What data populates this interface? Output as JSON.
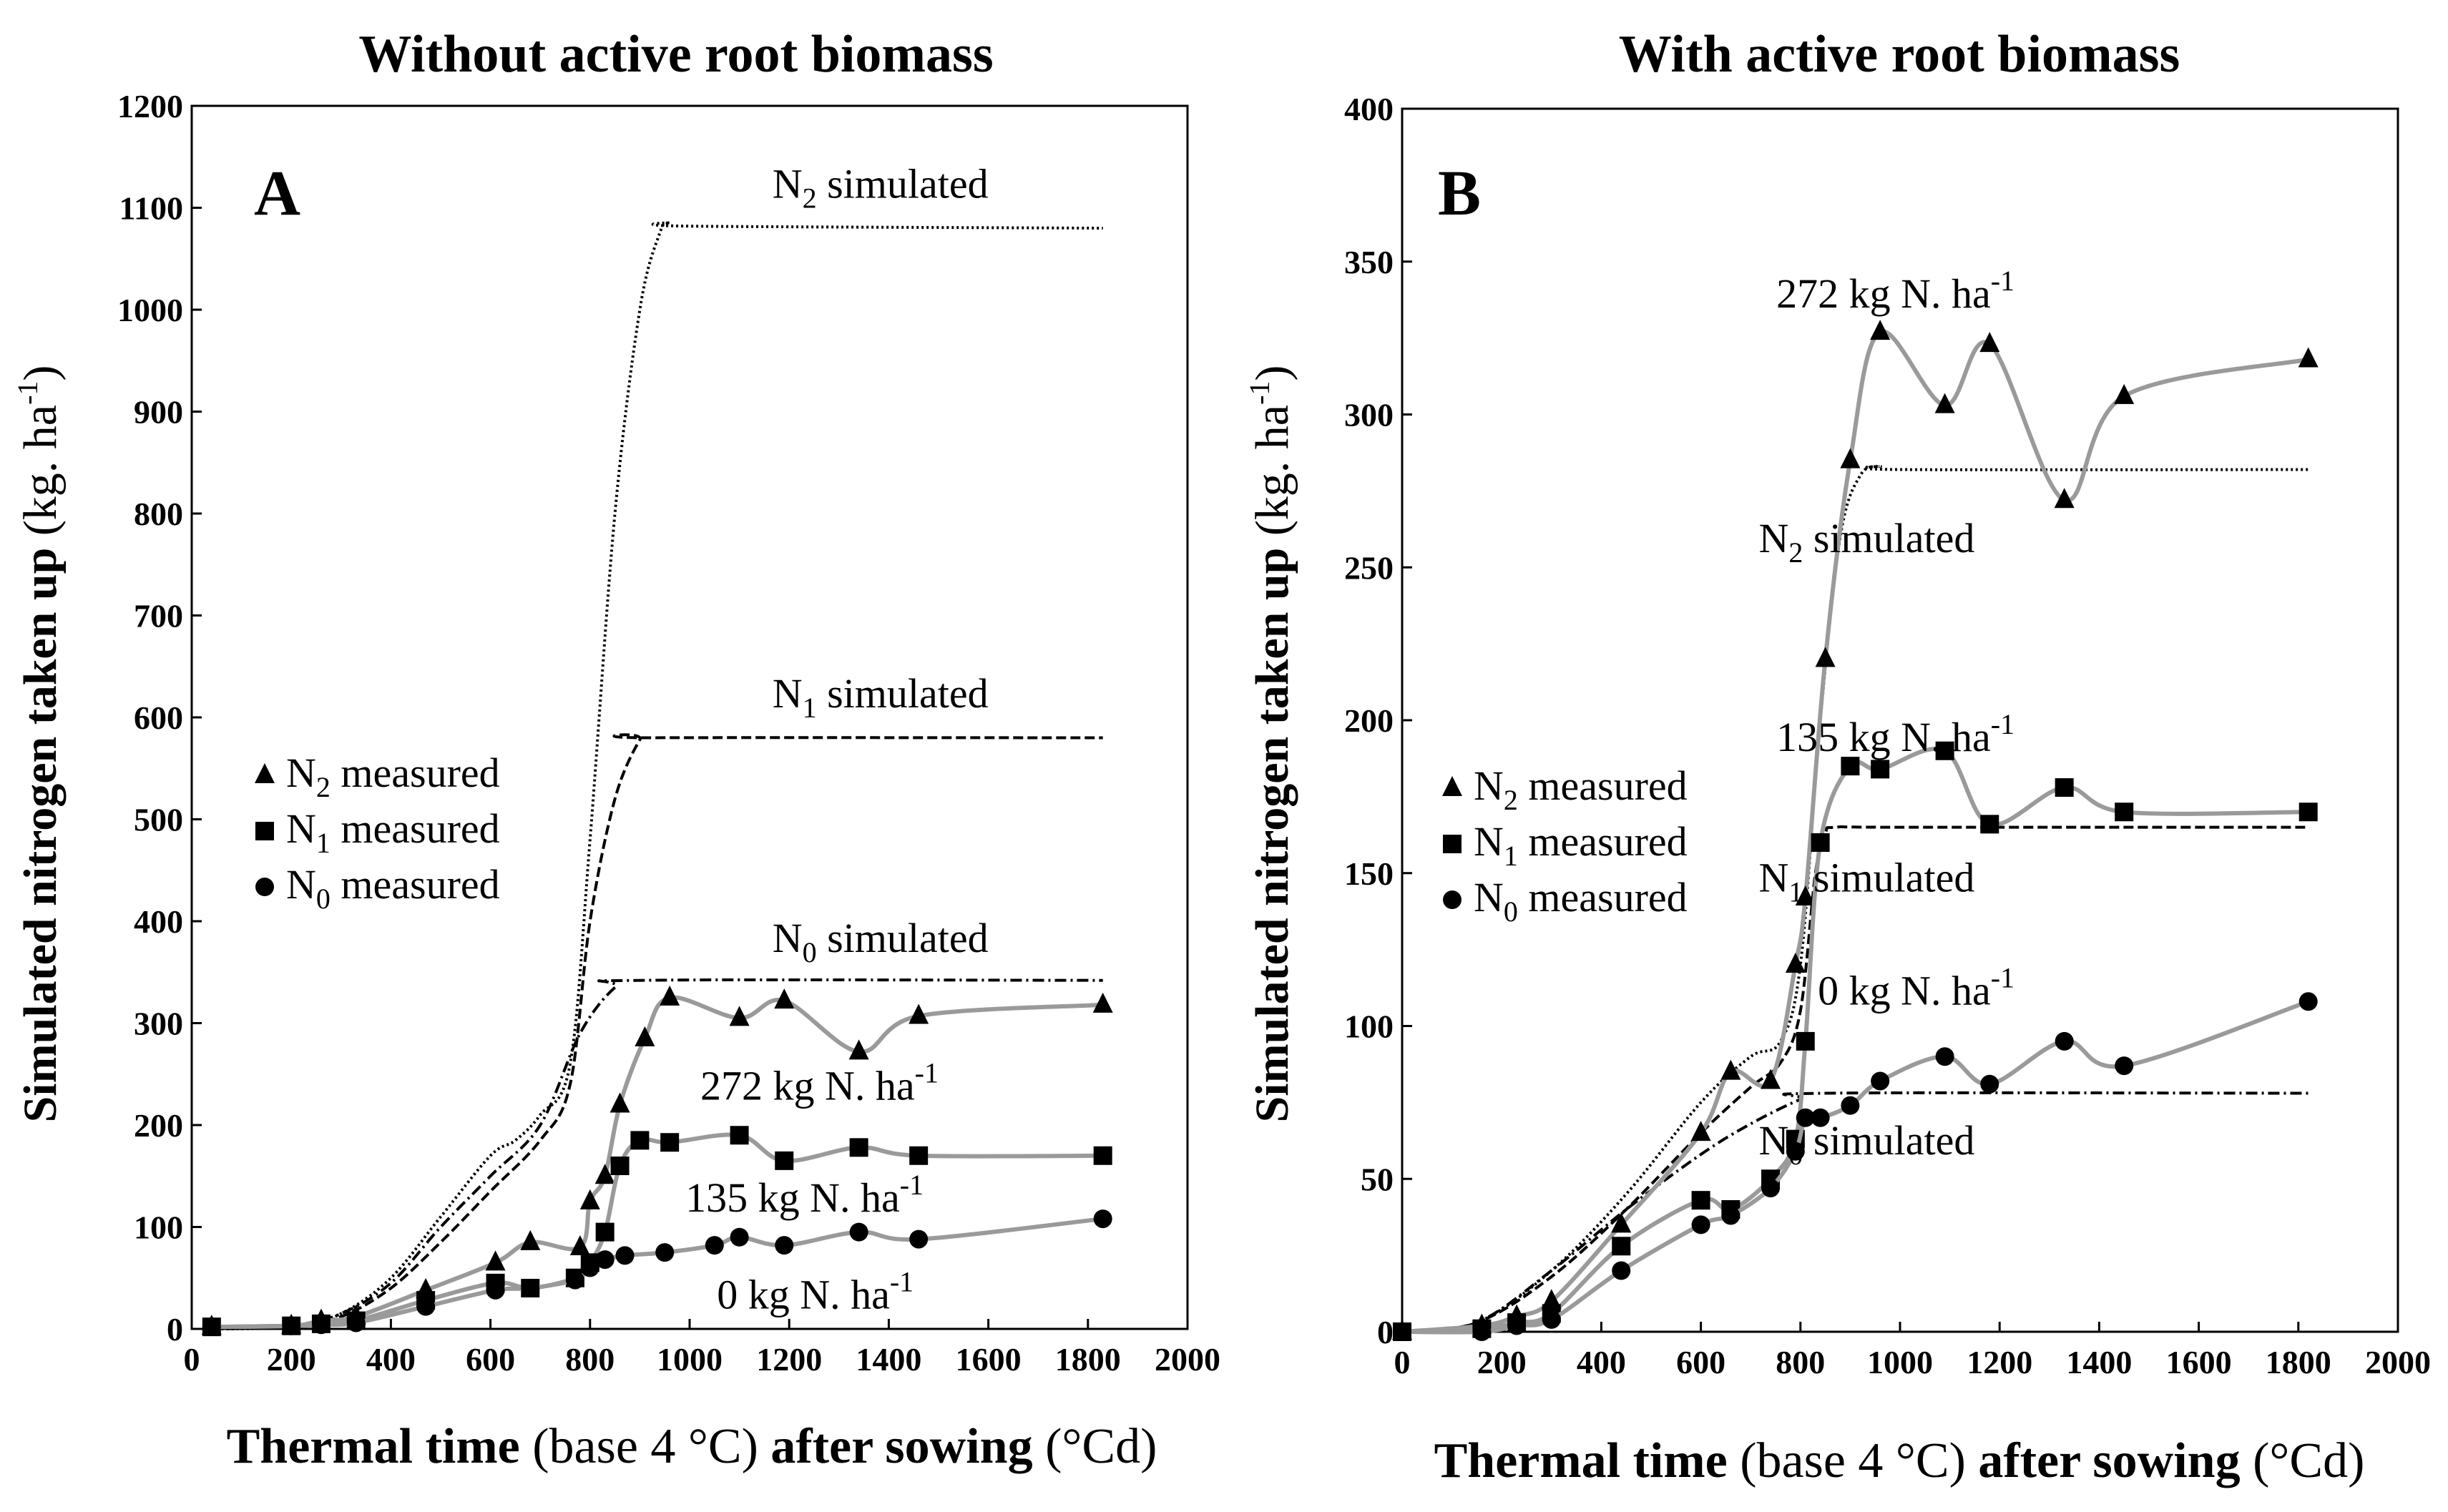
{
  "chart_data": [
    {
      "type": "line",
      "panel_letter": "A",
      "title": "Without active root biomass",
      "ylabel": {
        "bold": "Simulated nitrogen taken up",
        "unit_pre": " (kg. ha",
        "unit_sup": "-1",
        "unit_post": ")"
      },
      "xlabel": {
        "bold1": "Thermal time",
        "normal1": " (base 4 °C) ",
        "bold2": "after sowing",
        "normal2": " (°Cd)"
      },
      "xlim": [
        0,
        2000
      ],
      "ylim": [
        0,
        1200
      ],
      "xticks": [
        0,
        200,
        400,
        600,
        800,
        1000,
        1200,
        1400,
        1600,
        1800,
        2000
      ],
      "yticks": [
        0,
        100,
        200,
        300,
        400,
        500,
        600,
        700,
        800,
        900,
        1000,
        1100,
        1200
      ],
      "simulated": [
        {
          "name": "N2 simulated",
          "style": "dotted",
          "x": [
            40,
            200,
            300,
            400,
            500,
            600,
            650,
            700,
            760,
            800,
            850,
            900,
            940,
            960,
            1000,
            1830
          ],
          "y": [
            0,
            2,
            15,
            50,
            110,
            170,
            185,
            210,
            260,
            480,
            800,
            1000,
            1075,
            1085,
            1082,
            1080
          ]
        },
        {
          "name": "N1 simulated",
          "style": "dashed",
          "x": [
            40,
            200,
            300,
            400,
            500,
            600,
            700,
            760,
            800,
            850,
            900,
            920,
            1830
          ],
          "y": [
            0,
            2,
            12,
            40,
            85,
            135,
            185,
            240,
            400,
            520,
            578,
            580,
            580
          ]
        },
        {
          "name": "N0 simulated",
          "style": "dashdot",
          "x": [
            40,
            200,
            300,
            400,
            500,
            600,
            700,
            780,
            850,
            900,
            1830
          ],
          "y": [
            0,
            3,
            15,
            45,
            100,
            150,
            200,
            290,
            335,
            342,
            342
          ]
        }
      ],
      "measured": [
        {
          "name": "N2 measured",
          "marker": "triangle",
          "x": [
            40,
            200,
            260,
            330,
            470,
            610,
            680,
            780,
            800,
            830,
            860,
            910,
            960,
            1100,
            1190,
            1340,
            1460,
            1830
          ],
          "y": [
            2,
            3,
            8,
            12,
            38,
            65,
            85,
            80,
            125,
            150,
            220,
            285,
            325,
            305,
            322,
            272,
            307,
            318
          ]
        },
        {
          "name": "N1 measured",
          "marker": "square",
          "x": [
            40,
            200,
            260,
            330,
            470,
            610,
            680,
            770,
            800,
            830,
            860,
            900,
            960,
            1100,
            1190,
            1340,
            1460,
            1830
          ],
          "y": [
            2,
            3,
            5,
            8,
            28,
            45,
            40,
            50,
            65,
            95,
            160,
            185,
            183,
            190,
            165,
            178,
            170,
            170
          ]
        },
        {
          "name": "N0 measured",
          "marker": "circle",
          "x": [
            40,
            200,
            260,
            330,
            470,
            610,
            680,
            770,
            800,
            830,
            870,
            950,
            1050,
            1100,
            1190,
            1340,
            1460,
            1830
          ],
          "y": [
            2,
            3,
            4,
            6,
            22,
            38,
            40,
            48,
            60,
            68,
            72,
            75,
            82,
            90,
            82,
            95,
            88,
            108
          ]
        }
      ],
      "annotations": [
        {
          "base": "N",
          "sub": "2",
          "rest": " simulated",
          "x": 1600,
          "y": 1110
        },
        {
          "base": "N",
          "sub": "1",
          "rest": " simulated",
          "x": 1600,
          "y": 610
        },
        {
          "base": "N",
          "sub": "0",
          "rest": " simulated",
          "x": 1600,
          "y": 370
        },
        {
          "base": "272 kg N. ha",
          "sup": "-1",
          "rest": "",
          "x": 1500,
          "y": 225
        },
        {
          "base": "135 kg N. ha",
          "sup": "-1",
          "rest": "",
          "x": 1470,
          "y": 115
        },
        {
          "base": "0 kg N. ha",
          "sup": "-1",
          "rest": "",
          "x": 1450,
          "y": 20
        }
      ],
      "legend": [
        {
          "marker": "triangle",
          "base": "N",
          "sub": "2",
          "rest": " measured"
        },
        {
          "marker": "square",
          "base": "N",
          "sub": "1",
          "rest": " measured"
        },
        {
          "marker": "circle",
          "base": "N",
          "sub": "0",
          "rest": " measured"
        }
      ]
    },
    {
      "type": "line",
      "panel_letter": "B",
      "title": "With active root biomass",
      "ylabel": {
        "bold": "Simulated nitrogen taken up",
        "unit_pre": " (kg. ha",
        "unit_sup": "-1",
        "unit_post": ")"
      },
      "xlabel": {
        "bold1": "Thermal time",
        "normal1": " (base 4 °C) ",
        "bold2": "after sowing",
        "normal2": " (°Cd)"
      },
      "xlim": [
        0,
        2000
      ],
      "ylim": [
        0,
        400
      ],
      "xticks": [
        0,
        200,
        400,
        600,
        800,
        1000,
        1200,
        1400,
        1600,
        1800,
        2000
      ],
      "yticks": [
        0,
        50,
        100,
        150,
        200,
        250,
        300,
        350,
        400
      ],
      "simulated": [
        {
          "name": "N2 simulated",
          "style": "dotted",
          "x": [
            0,
            150,
            300,
            450,
            600,
            700,
            760,
            800,
            840,
            880,
            920,
            960,
            1000,
            1820
          ],
          "y": [
            0,
            3,
            20,
            45,
            75,
            90,
            95,
            120,
            200,
            260,
            280,
            283,
            282,
            282
          ]
        },
        {
          "name": "N1 simulated",
          "style": "dashed",
          "x": [
            0,
            150,
            300,
            450,
            600,
            700,
            760,
            800,
            830,
            850,
            870,
            1000,
            1820
          ],
          "y": [
            0,
            3,
            18,
            40,
            65,
            80,
            88,
            105,
            150,
            163,
            165,
            165,
            165
          ]
        },
        {
          "name": "N0 simulated",
          "style": "dashdot",
          "x": [
            0,
            150,
            300,
            450,
            600,
            700,
            800,
            850,
            1820
          ],
          "y": [
            0,
            3,
            20,
            40,
            58,
            68,
            76,
            78,
            78
          ]
        }
      ],
      "measured": [
        {
          "name": "N2 measured",
          "marker": "triangle",
          "x": [
            0,
            160,
            230,
            300,
            440,
            600,
            660,
            740,
            790,
            810,
            850,
            900,
            960,
            1090,
            1180,
            1330,
            1450,
            1820
          ],
          "y": [
            0,
            2,
            5,
            10,
            35,
            65,
            85,
            82,
            120,
            142,
            220,
            285,
            327,
            303,
            323,
            272,
            306,
            318
          ]
        },
        {
          "name": "N1 measured",
          "marker": "square",
          "x": [
            0,
            160,
            230,
            300,
            440,
            600,
            660,
            740,
            790,
            810,
            840,
            900,
            960,
            1090,
            1180,
            1330,
            1450,
            1820
          ],
          "y": [
            0,
            1,
            3,
            6,
            28,
            43,
            40,
            50,
            63,
            95,
            160,
            185,
            184,
            190,
            166,
            178,
            170,
            170
          ]
        },
        {
          "name": "N0 measured",
          "marker": "circle",
          "x": [
            0,
            160,
            230,
            300,
            440,
            600,
            660,
            740,
            790,
            810,
            840,
            900,
            960,
            1090,
            1180,
            1330,
            1450,
            1820
          ],
          "y": [
            0,
            0,
            2,
            4,
            20,
            35,
            38,
            47,
            59,
            70,
            70,
            74,
            82,
            90,
            81,
            95,
            87,
            108
          ]
        }
      ],
      "annotations": [
        {
          "base": "272 kg N. ha",
          "sup": "-1",
          "rest": "",
          "x": 1230,
          "y": 335
        },
        {
          "base": "N",
          "sub": "2",
          "rest": " simulated",
          "x": 1150,
          "y": 255
        },
        {
          "base": "135 kg N. ha",
          "sup": "-1",
          "rest": "",
          "x": 1230,
          "y": 190
        },
        {
          "base": "N",
          "sub": "1",
          "rest": " simulated",
          "x": 1150,
          "y": 144
        },
        {
          "base": "0 kg N. ha",
          "sup": "-1",
          "rest": "",
          "x": 1230,
          "y": 107
        },
        {
          "base": "N",
          "sub": "0",
          "rest": " simulated",
          "x": 1150,
          "y": 58
        }
      ],
      "legend": [
        {
          "marker": "triangle",
          "base": "N",
          "sub": "2",
          "rest": " measured"
        },
        {
          "marker": "square",
          "base": "N",
          "sub": "1",
          "rest": " measured"
        },
        {
          "marker": "circle",
          "base": "N",
          "sub": "0",
          "rest": " measured"
        }
      ]
    }
  ]
}
